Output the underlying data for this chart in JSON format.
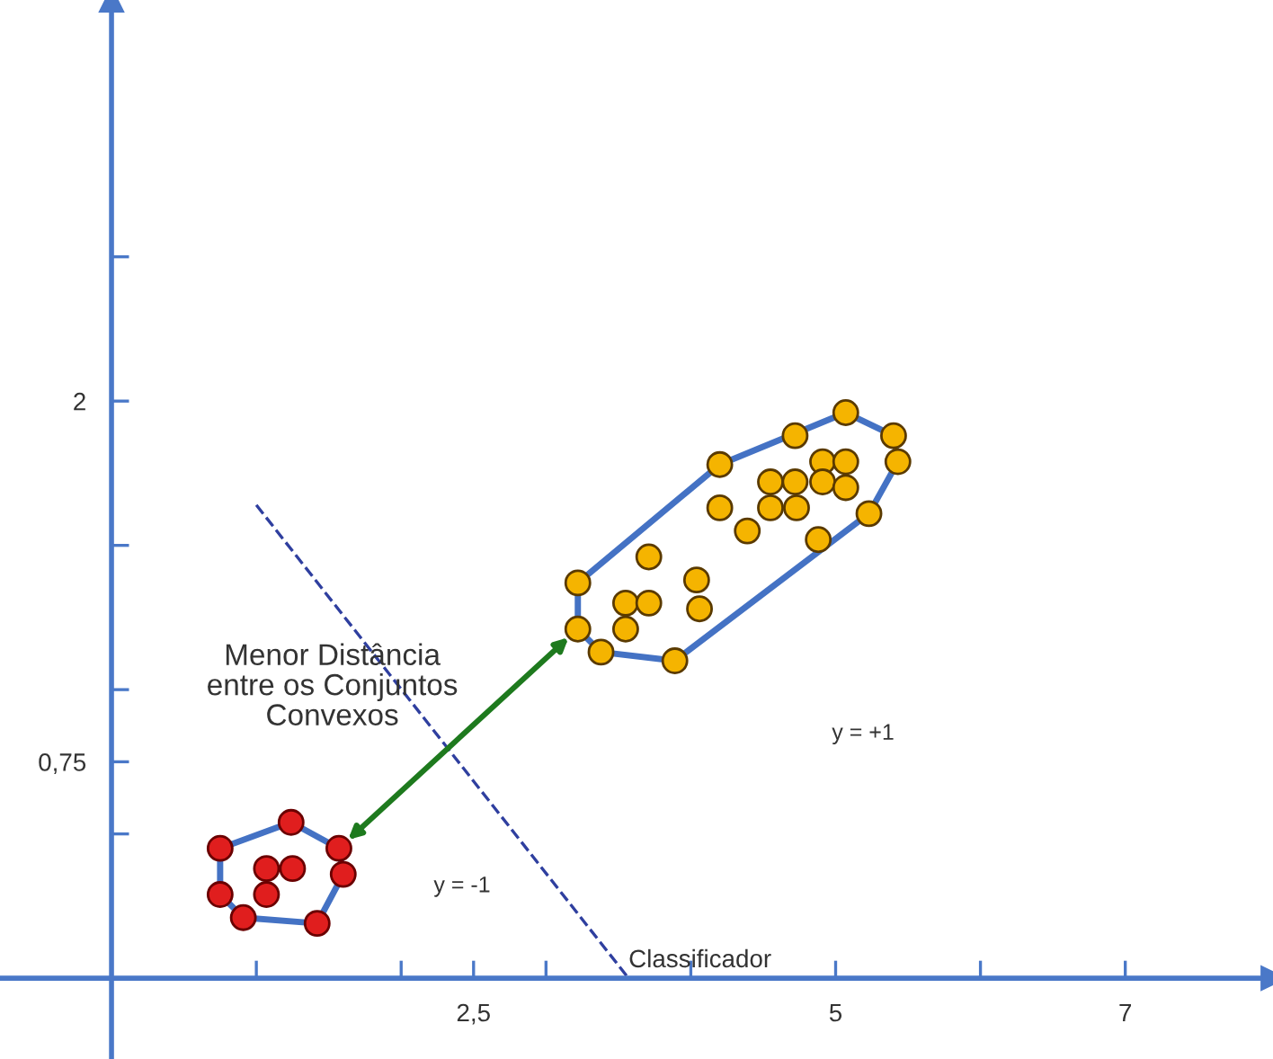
{
  "chart_data": {
    "type": "scatter",
    "xlim": [
      -0.77,
      8.02
    ],
    "ylim": [
      -0.28,
      3.39
    ],
    "xticks": [
      {
        "value": 1,
        "label": null
      },
      {
        "value": 2,
        "label": null
      },
      {
        "value": 2.5,
        "label": "2,5"
      },
      {
        "value": 3,
        "label": null
      },
      {
        "value": 4,
        "label": null
      },
      5,
      {
        "value": 6,
        "label": null
      },
      7
    ],
    "yticks": [
      {
        "value": 0.5,
        "label": null
      },
      {
        "value": 0.75,
        "label": "0,75"
      },
      {
        "value": 1,
        "label": null
      },
      {
        "value": 1.5,
        "label": null
      },
      2,
      {
        "value": 2.5,
        "label": null
      }
    ],
    "grid": false,
    "legend": false,
    "marker": "circle",
    "series": [
      {
        "type": "scatter",
        "color": "#e01e1e",
        "x": [
          0.75,
          1.24,
          1.57,
          1.6,
          0.75,
          0.91,
          1.42,
          1.07,
          1.25,
          1.07
        ],
        "values": [
          0.45,
          0.54,
          0.45,
          0.36,
          0.29,
          0.21,
          0.19,
          0.38,
          0.38,
          0.29
        ]
      },
      {
        "type": "scatter",
        "color": "#f5b400",
        "x": [
          5.07,
          4.72,
          5.4,
          5.43,
          4.2,
          4.91,
          5.07,
          4.55,
          4.72,
          4.91,
          5.07,
          4.55,
          4.73,
          4.2,
          4.39,
          5.23,
          4.88,
          3.71,
          3.22,
          4.04,
          3.55,
          3.71,
          4.06,
          3.22,
          3.55,
          3.38,
          3.89
        ],
        "values": [
          1.96,
          1.88,
          1.88,
          1.79,
          1.78,
          1.79,
          1.79,
          1.72,
          1.72,
          1.72,
          1.7,
          1.63,
          1.63,
          1.63,
          1.55,
          1.61,
          1.52,
          1.46,
          1.37,
          1.38,
          1.3,
          1.3,
          1.28,
          1.21,
          1.21,
          1.13,
          1.1
        ]
      },
      {
        "type": "line",
        "name": "Classificador",
        "color": "#2f3f9f",
        "line_style": "dashed",
        "marker": "none",
        "x": [
          1.0,
          3.57
        ],
        "values": [
          1.64,
          0.0
        ]
      }
    ],
    "annotations": [
      "Menor Distância\nentre os Conjuntos\nConvexos",
      "y = +1",
      "y = -1"
    ]
  }
}
